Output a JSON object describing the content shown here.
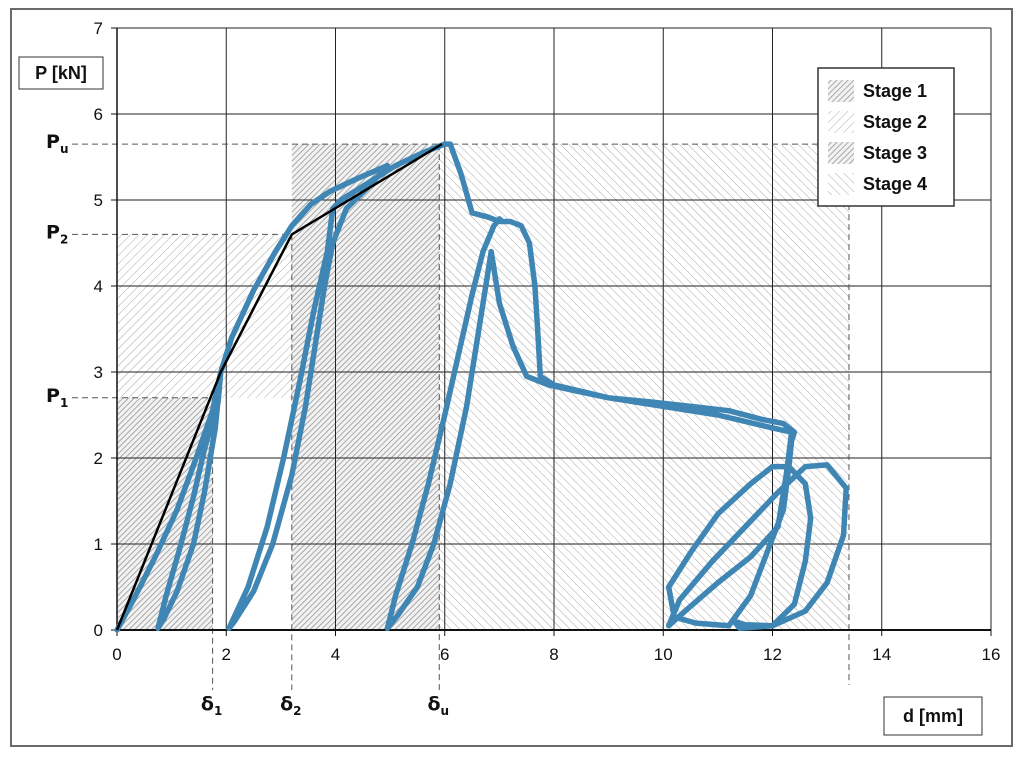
{
  "chart_data": {
    "type": "line",
    "xlabel": "d [mm]",
    "ylabel": "P [kN]",
    "xlim": [
      0,
      16
    ],
    "ylim": [
      0,
      7
    ],
    "xticks": [
      0,
      2,
      4,
      6,
      8,
      10,
      12,
      14,
      16
    ],
    "yticks": [
      0,
      1,
      2,
      3,
      4,
      5,
      6,
      7
    ],
    "grid": true,
    "legend_position": "top-right",
    "legend": [
      {
        "label": "Stage 1",
        "pattern": "dense-diagonal"
      },
      {
        "label": "Stage 2",
        "pattern": "light-diagonal"
      },
      {
        "label": "Stage 3",
        "pattern": "dense-diagonal"
      },
      {
        "label": "Stage 4",
        "pattern": "back-diagonal"
      }
    ],
    "stages": [
      {
        "name": "Stage 1",
        "x_range": [
          0,
          1.75
        ],
        "y_range": [
          0,
          2.7
        ]
      },
      {
        "name": "Stage 2",
        "x_range": [
          0,
          3.2
        ],
        "y_range": [
          2.7,
          4.6
        ]
      },
      {
        "name": "Stage 3",
        "x_range": [
          3.2,
          5.9
        ],
        "y_range": [
          0,
          5.65
        ]
      },
      {
        "name": "Stage 4",
        "x_range": [
          5.9,
          13.4
        ],
        "y_range": [
          0,
          5.65
        ]
      }
    ],
    "characteristic_points": {
      "y": [
        {
          "label": "P",
          "sub": "1",
          "value": 2.7
        },
        {
          "label": "P",
          "sub": "2",
          "value": 4.6
        },
        {
          "label": "P",
          "sub": "u",
          "value": 5.65
        }
      ],
      "x": [
        {
          "label": "δ",
          "sub": "1",
          "value": 1.75
        },
        {
          "label": "δ",
          "sub": "2",
          "value": 3.2
        },
        {
          "label": "δ",
          "sub": "u",
          "value": 5.9
        }
      ],
      "x_end": 13.4
    },
    "envelope": {
      "name": "",
      "color": "#000000",
      "x": [
        0,
        1.9,
        3.2,
        5.95
      ],
      "y": [
        0,
        3.0,
        4.6,
        5.65
      ]
    },
    "cyclic_curve": {
      "name": "",
      "color": "#3f86b4",
      "x": [
        0,
        0.3,
        0.7,
        1.1,
        1.45,
        1.75,
        1.9,
        1.8,
        1.6,
        1.4,
        1.1,
        0.85,
        0.75,
        0.9,
        1.15,
        1.4,
        1.6,
        1.85,
        1.9,
        2.1,
        2.5,
        2.9,
        3.2,
        3.55,
        3.9,
        4.4,
        4.95,
        4.6,
        4.2,
        3.95,
        3.8,
        3.65,
        3.45,
        3.2,
        2.85,
        2.5,
        2.15,
        2.05,
        2.4,
        2.75,
        3.05,
        3.35,
        3.6,
        3.85,
        3.95,
        4.1,
        4.6,
        5.1,
        5.6,
        6.0,
        6.1,
        6.3,
        6.5,
        6.8,
        7.0,
        7.2,
        7.4,
        7.55,
        7.65,
        7.7,
        7.75,
        8.0,
        9.0,
        10.0,
        11.0,
        12.0,
        12.35,
        12.25,
        12.1,
        11.6,
        11.0,
        10.4,
        10.1,
        10.3,
        10.9,
        11.5,
        12.1,
        12.6,
        13.0,
        13.35,
        13.3,
        13.0,
        12.6,
        12.0,
        11.4,
        11.3,
        11.5,
        12.0,
        12.4,
        12.6,
        12.7,
        12.6,
        12.3,
        12.0,
        11.6,
        11.0,
        10.5,
        10.1,
        10.2,
        10.6,
        11.2,
        11.6,
        11.9,
        12.2,
        12.3,
        12.35,
        12.4,
        12.2,
        11.8,
        11.2,
        10.5,
        9.8,
        9.0,
        8.4,
        7.9,
        7.5,
        7.25,
        7.0,
        6.85,
        6.65,
        6.4,
        6.1,
        5.8,
        5.5,
        5.15,
        4.95,
        5.1,
        5.4,
        5.7,
        6.0,
        6.25,
        6.5,
        6.7,
        6.9,
        7.0,
        7.05
      ],
      "y": [
        0,
        0.35,
        0.85,
        1.4,
        2.0,
        2.55,
        3.0,
        2.35,
        1.6,
        1.0,
        0.45,
        0.12,
        0.02,
        0.4,
        0.95,
        1.55,
        2.1,
        2.65,
        3.0,
        3.4,
        3.95,
        4.4,
        4.7,
        4.95,
        5.1,
        5.25,
        5.4,
        5.15,
        4.9,
        4.5,
        4.0,
        3.4,
        2.6,
        1.8,
        1.0,
        0.45,
        0.1,
        0.02,
        0.5,
        1.2,
        2.0,
        2.9,
        3.7,
        4.4,
        4.9,
        5.0,
        5.2,
        5.4,
        5.55,
        5.65,
        5.65,
        5.3,
        4.85,
        4.8,
        4.75,
        4.75,
        4.7,
        4.5,
        4.0,
        3.5,
        2.95,
        2.85,
        2.7,
        2.6,
        2.5,
        2.35,
        2.3,
        1.8,
        1.2,
        0.85,
        0.55,
        0.22,
        0.05,
        0.35,
        0.8,
        1.2,
        1.6,
        1.9,
        1.92,
        1.65,
        1.1,
        0.55,
        0.22,
        0.05,
        0.02,
        0.1,
        0.06,
        0.05,
        0.3,
        0.8,
        1.3,
        1.7,
        1.9,
        1.9,
        1.7,
        1.35,
        0.9,
        0.5,
        0.15,
        0.08,
        0.05,
        0.4,
        0.9,
        1.4,
        1.9,
        2.2,
        2.3,
        2.4,
        2.45,
        2.55,
        2.6,
        2.65,
        2.7,
        2.78,
        2.85,
        2.95,
        3.3,
        3.8,
        4.4,
        3.6,
        2.6,
        1.7,
        1.0,
        0.5,
        0.18,
        0.02,
        0.4,
        1.0,
        1.7,
        2.5,
        3.2,
        3.9,
        4.4,
        4.7,
        4.78,
        4.75
      ]
    }
  }
}
